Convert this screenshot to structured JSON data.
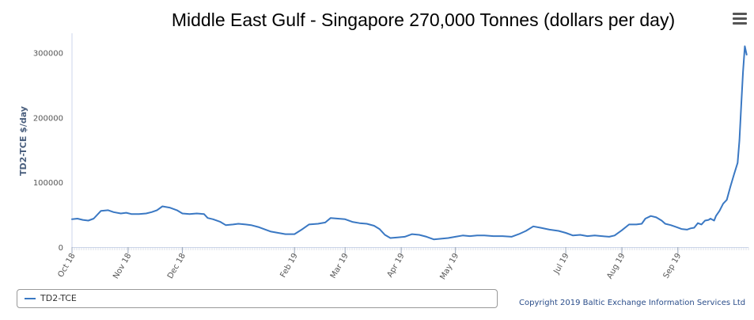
{
  "chart_data": {
    "type": "line",
    "title": "Middle East Gulf - Singapore 270,000 Tonnes (dollars per day)",
    "ylabel": "TD2-TCE $/day",
    "xlabel": "",
    "ylim": [
      0,
      330000
    ],
    "y_ticks": [
      0,
      100000,
      200000,
      300000
    ],
    "y_tick_labels": [
      "0",
      "100000",
      "200000",
      "300000"
    ],
    "x_ticks": [
      {
        "label": "Oct 18",
        "x": "2018-10-01"
      },
      {
        "label": "Nov 18",
        "x": "2018-11-01"
      },
      {
        "label": "Dec 18",
        "x": "2018-12-01"
      },
      {
        "label": "Feb 19",
        "x": "2019-02-01"
      },
      {
        "label": "Mar 19",
        "x": "2019-03-01"
      },
      {
        "label": "Apr 19",
        "x": "2019-04-01"
      },
      {
        "label": "May 19",
        "x": "2019-05-01"
      },
      {
        "label": "Jul 19",
        "x": "2019-07-01"
      },
      {
        "label": "Aug 19",
        "x": "2019-08-01"
      },
      {
        "label": "Sep 19",
        "x": "2019-09-01"
      }
    ],
    "grid": false,
    "legend": "bottom-left",
    "series": [
      {
        "name": "TD2-TCE",
        "color": "#3a78c3",
        "points": [
          [
            "2018-10-01",
            43000
          ],
          [
            "2018-10-04",
            44000
          ],
          [
            "2018-10-07",
            42000
          ],
          [
            "2018-10-10",
            41000
          ],
          [
            "2018-10-13",
            44000
          ],
          [
            "2018-10-17",
            56000
          ],
          [
            "2018-10-21",
            57000
          ],
          [
            "2018-10-24",
            54000
          ],
          [
            "2018-10-28",
            52000
          ],
          [
            "2018-10-31",
            53000
          ],
          [
            "2018-11-03",
            51000
          ],
          [
            "2018-11-07",
            51000
          ],
          [
            "2018-11-11",
            52000
          ],
          [
            "2018-11-14",
            54000
          ],
          [
            "2018-11-17",
            57000
          ],
          [
            "2018-11-20",
            63000
          ],
          [
            "2018-11-24",
            61000
          ],
          [
            "2018-11-28",
            57000
          ],
          [
            "2018-12-01",
            52000
          ],
          [
            "2018-12-05",
            51000
          ],
          [
            "2018-12-09",
            52000
          ],
          [
            "2018-12-13",
            51000
          ],
          [
            "2018-12-15",
            45000
          ],
          [
            "2018-12-18",
            43000
          ],
          [
            "2018-12-22",
            39000
          ],
          [
            "2018-12-25",
            34000
          ],
          [
            "2018-12-29",
            35000
          ],
          [
            "2019-01-01",
            36000
          ],
          [
            "2019-01-05",
            35000
          ],
          [
            "2019-01-08",
            34000
          ],
          [
            "2019-01-12",
            31000
          ],
          [
            "2019-01-16",
            27000
          ],
          [
            "2019-01-19",
            24000
          ],
          [
            "2019-01-23",
            22000
          ],
          [
            "2019-01-27",
            20000
          ],
          [
            "2019-02-01",
            20000
          ],
          [
            "2019-02-05",
            27000
          ],
          [
            "2019-02-09",
            35000
          ],
          [
            "2019-02-14",
            36000
          ],
          [
            "2019-02-18",
            38000
          ],
          [
            "2019-02-21",
            45000
          ],
          [
            "2019-02-25",
            44000
          ],
          [
            "2019-03-01",
            43000
          ],
          [
            "2019-03-05",
            39000
          ],
          [
            "2019-03-09",
            37000
          ],
          [
            "2019-03-13",
            36000
          ],
          [
            "2019-03-17",
            33000
          ],
          [
            "2019-03-20",
            28000
          ],
          [
            "2019-03-23",
            19000
          ],
          [
            "2019-03-26",
            14000
          ],
          [
            "2019-03-30",
            15000
          ],
          [
            "2019-04-03",
            16000
          ],
          [
            "2019-04-07",
            20000
          ],
          [
            "2019-04-11",
            19000
          ],
          [
            "2019-04-15",
            16000
          ],
          [
            "2019-04-19",
            12000
          ],
          [
            "2019-04-23",
            13000
          ],
          [
            "2019-04-27",
            14000
          ],
          [
            "2019-05-01",
            16000
          ],
          [
            "2019-05-05",
            18000
          ],
          [
            "2019-05-09",
            17000
          ],
          [
            "2019-05-13",
            18000
          ],
          [
            "2019-05-17",
            18000
          ],
          [
            "2019-05-22",
            17000
          ],
          [
            "2019-05-27",
            17000
          ],
          [
            "2019-06-01",
            16000
          ],
          [
            "2019-06-05",
            20000
          ],
          [
            "2019-06-09",
            25000
          ],
          [
            "2019-06-13",
            32000
          ],
          [
            "2019-06-17",
            30000
          ],
          [
            "2019-06-22",
            27000
          ],
          [
            "2019-06-27",
            25000
          ],
          [
            "2019-07-01",
            22000
          ],
          [
            "2019-07-05",
            18000
          ],
          [
            "2019-07-09",
            19000
          ],
          [
            "2019-07-13",
            17000
          ],
          [
            "2019-07-17",
            18000
          ],
          [
            "2019-07-21",
            17000
          ],
          [
            "2019-07-25",
            16000
          ],
          [
            "2019-07-28",
            18000
          ],
          [
            "2019-08-01",
            26000
          ],
          [
            "2019-08-05",
            35000
          ],
          [
            "2019-08-09",
            35000
          ],
          [
            "2019-08-12",
            36000
          ],
          [
            "2019-08-14",
            44000
          ],
          [
            "2019-08-17",
            48000
          ],
          [
            "2019-08-20",
            46000
          ],
          [
            "2019-08-23",
            41000
          ],
          [
            "2019-08-25",
            36000
          ],
          [
            "2019-08-28",
            34000
          ],
          [
            "2019-08-31",
            31000
          ],
          [
            "2019-09-03",
            28000
          ],
          [
            "2019-09-06",
            27000
          ],
          [
            "2019-09-08",
            29000
          ],
          [
            "2019-09-10",
            30000
          ],
          [
            "2019-09-12",
            37000
          ],
          [
            "2019-09-14",
            35000
          ],
          [
            "2019-09-16",
            41000
          ],
          [
            "2019-09-18",
            42000
          ],
          [
            "2019-09-19",
            44000
          ],
          [
            "2019-09-21",
            41000
          ],
          [
            "2019-09-22",
            48000
          ],
          [
            "2019-09-24",
            56000
          ],
          [
            "2019-09-26",
            67000
          ],
          [
            "2019-09-28",
            73000
          ],
          [
            "2019-09-30",
            93000
          ],
          [
            "2019-10-02",
            112000
          ],
          [
            "2019-10-04",
            130000
          ],
          [
            "2019-10-05",
            165000
          ],
          [
            "2019-10-06",
            220000
          ],
          [
            "2019-10-07",
            270000
          ],
          [
            "2019-10-08",
            310000
          ],
          [
            "2019-10-09",
            297000
          ]
        ]
      }
    ]
  },
  "legend": {
    "label": "TD2-TCE"
  },
  "copyright": "Copyright 2019 Baltic Exchange Information Services Ltd",
  "icons": {
    "menu": "hamburger-menu-icon"
  }
}
